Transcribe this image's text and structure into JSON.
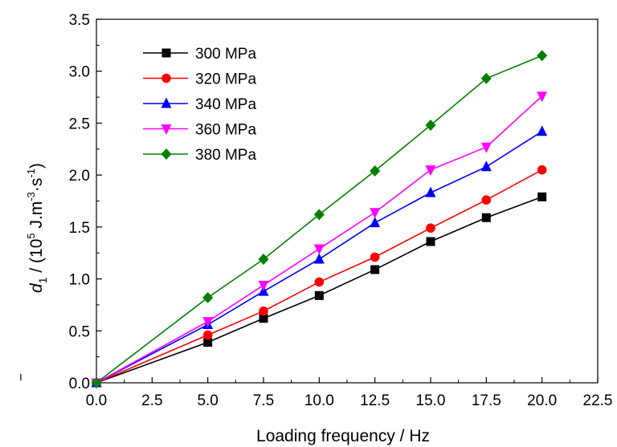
{
  "chart_data": {
    "type": "line",
    "xlabel": "Loading frequency  / Hz",
    "ylabel_parts": {
      "symbol": "d",
      "bar": "‾",
      "subscript": "1",
      "sep": " / (10",
      "exp5": "5",
      "unit_mid": " J.m",
      "exp_m3": "-3",
      "unit_s": "·s",
      "exp_m1": "-1",
      "close": ")"
    },
    "xlim": [
      0,
      22.5
    ],
    "ylim": [
      0,
      3.5
    ],
    "xticks": [
      "0.0",
      "2.5",
      "5.0",
      "7.5",
      "10.0",
      "12.5",
      "15.0",
      "17.5",
      "20.0",
      "22.5"
    ],
    "yticks": [
      "0.0",
      "0.5",
      "1.0",
      "1.5",
      "2.0",
      "2.5",
      "3.0",
      "3.5"
    ],
    "legend_position": "top-left",
    "grid": false,
    "x": [
      0,
      5,
      7.5,
      10,
      12.5,
      15,
      17.5,
      20
    ],
    "series": [
      {
        "name": "300 MPa",
        "color": "#000000",
        "marker": "square",
        "values": [
          0.0,
          0.39,
          0.62,
          0.84,
          1.09,
          1.36,
          1.59,
          1.79
        ]
      },
      {
        "name": "320 MPa",
        "color": "#ff0000",
        "marker": "circle",
        "values": [
          0.0,
          0.46,
          0.69,
          0.97,
          1.21,
          1.49,
          1.76,
          2.05
        ]
      },
      {
        "name": "340 MPa",
        "color": "#0000ff",
        "marker": "triangle-up",
        "values": [
          0.0,
          0.56,
          0.88,
          1.19,
          1.54,
          1.83,
          2.08,
          2.42
        ]
      },
      {
        "name": "360 MPa",
        "color": "#ff00ff",
        "marker": "triangle-down",
        "values": [
          0.0,
          0.59,
          0.94,
          1.29,
          1.64,
          2.05,
          2.27,
          2.76
        ]
      },
      {
        "name": "380 MPa",
        "color": "#008000",
        "marker": "diamond",
        "values": [
          0.0,
          0.82,
          1.19,
          1.62,
          2.04,
          2.48,
          2.93,
          3.15
        ]
      }
    ]
  }
}
